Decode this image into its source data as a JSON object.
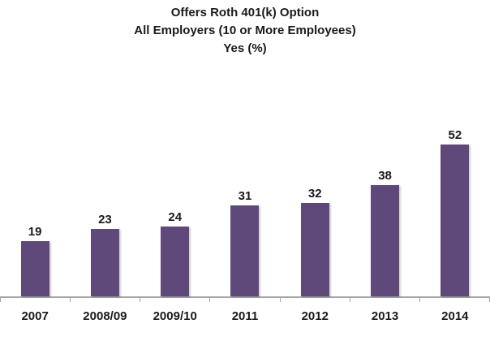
{
  "chart_data": {
    "type": "bar",
    "title_lines": [
      "Offers Roth 401(k) Option",
      "All Employers (10 or More Employees)",
      "Yes (%)"
    ],
    "categories": [
      "2007",
      "2008/09",
      "2009/10",
      "2011",
      "2012",
      "2013",
      "2014"
    ],
    "values": [
      19,
      23,
      24,
      31,
      32,
      38,
      52
    ],
    "data_labels": [
      19,
      23,
      24,
      31,
      32,
      38,
      52
    ],
    "xlabel": "",
    "ylabel": "",
    "ylim": [
      0,
      60
    ],
    "grid": false,
    "legend": "none",
    "y_axis_visible": false,
    "bar_color": "#5F497A",
    "axis_color": "#A6A6A6",
    "text_color": "#1A1A1A",
    "background_color": "#FFFFFF"
  }
}
